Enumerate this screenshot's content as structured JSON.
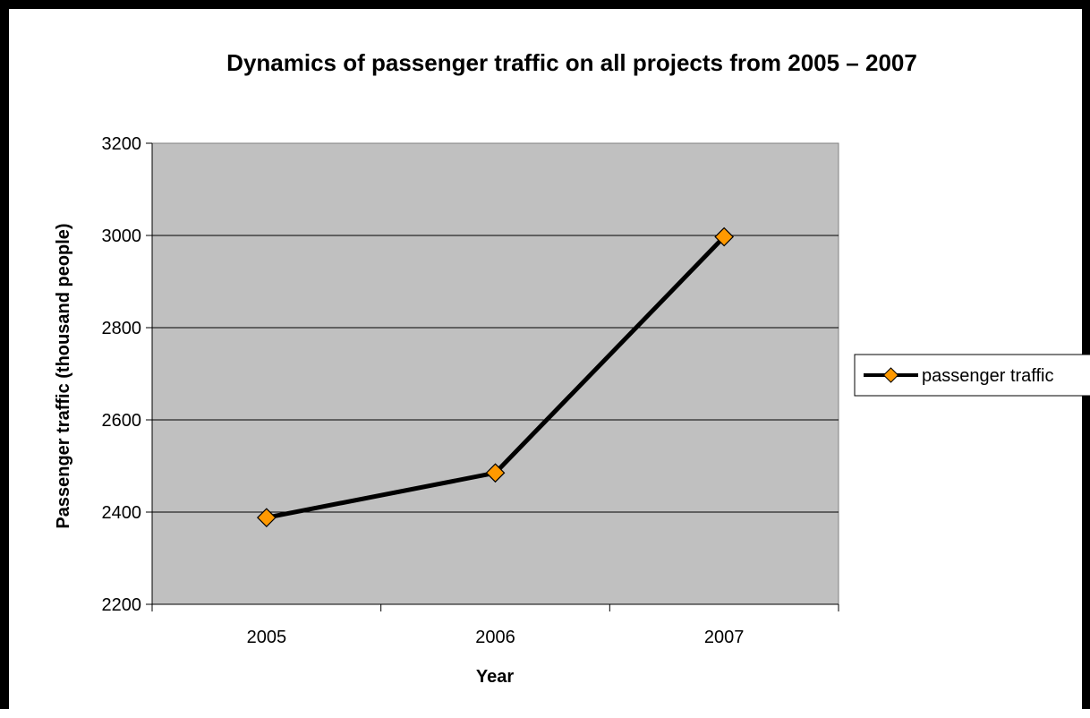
{
  "chart_data": {
    "type": "line",
    "title": "Dynamics of passenger traffic on all projects from 2005 – 2007",
    "xlabel": "Year",
    "ylabel": "Passenger traffic (thousand people)",
    "categories": [
      "2005",
      "2006",
      "2007"
    ],
    "series": [
      {
        "name": "passenger traffic",
        "values": [
          2388,
          2485,
          2997
        ],
        "color": "#000000",
        "marker": "diamond",
        "marker_color": "#FF9900"
      }
    ],
    "ylim": [
      2200,
      3200
    ],
    "yticks": [
      2200,
      2400,
      2600,
      2800,
      3000,
      3200
    ],
    "grid": true,
    "legend_position": "right",
    "plot_background": "#C0C0C0"
  }
}
